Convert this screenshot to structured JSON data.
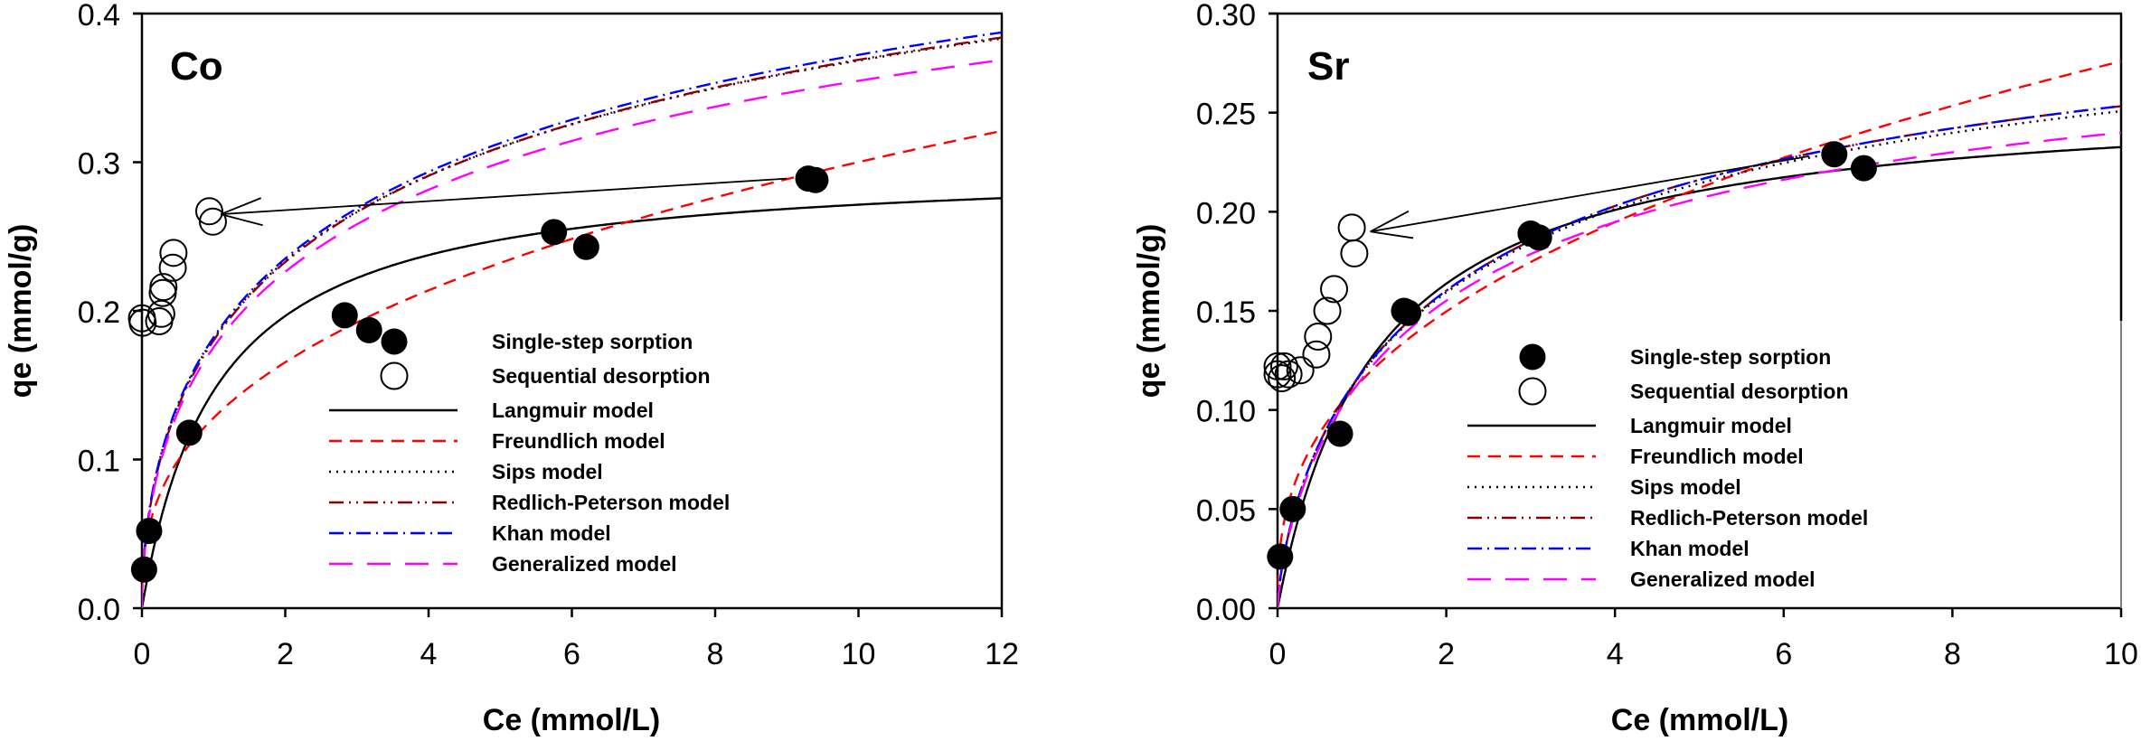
{
  "chart_data": [
    {
      "type": "scatter",
      "panel_label": "Co",
      "xlabel": "Ce (mmol/L)",
      "ylabel": "qe (mmol/g)",
      "xlim": [
        0,
        12
      ],
      "ylim": [
        0,
        0.4
      ],
      "xticks": [
        0,
        2,
        4,
        6,
        8,
        10,
        12
      ],
      "xtick_labels": [
        "0",
        "2",
        "4",
        "6",
        "8",
        "10",
        "12"
      ],
      "yticks": [
        0,
        0.1,
        0.2,
        0.3,
        0.4
      ],
      "ytick_labels": [
        "0.0",
        "0.1",
        "0.2",
        "0.3",
        "0.4"
      ],
      "grid": false,
      "legend_position": "center-right",
      "annotation": {
        "type": "arrow",
        "from": [
          9.0,
          0.289
        ],
        "to": [
          1.1,
          0.265
        ]
      },
      "series": [
        {
          "name": "Single-step sorption",
          "kind": "scatter",
          "marker": "filled-circle",
          "color": "#000000",
          "x": [
            0.03,
            0.1,
            0.66,
            2.83,
            3.17,
            5.75,
            6.2,
            9.3,
            9.4
          ],
          "y": [
            0.026,
            0.052,
            0.118,
            0.197,
            0.187,
            0.253,
            0.243,
            0.289,
            0.288
          ]
        },
        {
          "name": "Sequential desorption",
          "kind": "scatter",
          "marker": "open-circle",
          "color": "#000000",
          "x": [
            0.94,
            0.99,
            0.44,
            0.43,
            0.3,
            0.29,
            0.27,
            0.24,
            0.0,
            0.01
          ],
          "y": [
            0.267,
            0.26,
            0.239,
            0.229,
            0.216,
            0.212,
            0.198,
            0.193,
            0.195,
            0.192
          ]
        },
        {
          "name": "Langmuir model",
          "kind": "line",
          "dash": "solid",
          "color": "#000000",
          "model": "langmuir",
          "params": {
            "qm": 0.3,
            "K": 0.95
          }
        },
        {
          "name": "Freundlich model",
          "kind": "line",
          "dash": "dash",
          "color": "#ff0000",
          "model": "freundlich",
          "params": {
            "Kf": 0.128,
            "n": 0.37
          }
        },
        {
          "name": "Sips model",
          "kind": "line",
          "dash": "dot",
          "color": "#000000",
          "model": "sips",
          "params": {
            "qm": 0.62,
            "K": 0.2,
            "n": 0.55
          }
        },
        {
          "name": "Redlich-Peterson model",
          "kind": "line",
          "dash": "dash-dot-dot",
          "color": "#8b0000",
          "model": "sips",
          "params": {
            "qm": 0.62,
            "K": 0.2,
            "n": 0.555
          }
        },
        {
          "name": "Khan model",
          "kind": "line",
          "dash": "dash-dot",
          "color": "#0000ff",
          "model": "sips",
          "params": {
            "qm": 0.63,
            "K": 0.195,
            "n": 0.55
          }
        },
        {
          "name": "Generalized model",
          "kind": "line",
          "dash": "long-dash",
          "color": "#ff00ff",
          "model": "sips",
          "params": {
            "qm": 0.58,
            "K": 0.225,
            "n": 0.56
          }
        }
      ]
    },
    {
      "type": "scatter",
      "panel_label": "Sr",
      "xlabel": "Ce (mmol/L)",
      "ylabel": "qe (mmol/g)",
      "xlim": [
        0,
        10
      ],
      "ylim": [
        0,
        0.3
      ],
      "xticks": [
        0,
        2,
        4,
        6,
        8,
        10
      ],
      "xtick_labels": [
        "0",
        "2",
        "4",
        "6",
        "8",
        "10"
      ],
      "yticks": [
        0,
        0.05,
        0.1,
        0.15,
        0.2,
        0.25,
        0.3
      ],
      "ytick_labels": [
        "0.00",
        "0.05",
        "0.10",
        "0.15",
        "0.20",
        "0.25",
        "0.30"
      ],
      "grid": false,
      "legend_position": "center-right",
      "annotation": {
        "type": "arrow",
        "from": [
          6.3,
          0.228
        ],
        "to": [
          1.1,
          0.19
        ]
      },
      "series": [
        {
          "name": "Single-step sorption",
          "kind": "scatter",
          "marker": "filled-circle",
          "color": "#000000",
          "x": [
            0.03,
            0.18,
            0.74,
            1.5,
            1.55,
            3.0,
            3.1,
            6.6,
            6.95
          ],
          "y": [
            0.026,
            0.05,
            0.088,
            0.15,
            0.149,
            0.189,
            0.187,
            0.229,
            0.222
          ]
        },
        {
          "name": "Sequential desorption",
          "kind": "scatter",
          "marker": "open-circle",
          "color": "#000000",
          "x": [
            0.88,
            0.91,
            0.67,
            0.59,
            0.48,
            0.46,
            0.27,
            0.08,
            0.0,
            0.05,
            0.13,
            0.0
          ],
          "y": [
            0.192,
            0.179,
            0.161,
            0.15,
            0.137,
            0.128,
            0.12,
            0.122,
            0.118,
            0.116,
            0.118,
            0.122
          ]
        },
        {
          "name": "Langmuir model",
          "kind": "line",
          "dash": "solid",
          "color": "#000000",
          "model": "langmuir",
          "params": {
            "qm": 0.26,
            "K": 0.85
          }
        },
        {
          "name": "Freundlich model",
          "kind": "line",
          "dash": "dash",
          "color": "#ff0000",
          "model": "freundlich",
          "params": {
            "Kf": 0.115,
            "n": 0.38
          }
        },
        {
          "name": "Sips model",
          "kind": "line",
          "dash": "dot",
          "color": "#000000",
          "model": "sips",
          "params": {
            "qm": 0.34,
            "K": 0.42,
            "n": 0.72
          }
        },
        {
          "name": "Redlich-Peterson model",
          "kind": "line",
          "dash": "dash-dot-dot",
          "color": "#8b0000",
          "model": "sips",
          "params": {
            "qm": 0.345,
            "K": 0.41,
            "n": 0.72
          }
        },
        {
          "name": "Khan model",
          "kind": "line",
          "dash": "dash-dot",
          "color": "#0000ff",
          "model": "sips",
          "params": {
            "qm": 0.345,
            "K": 0.41,
            "n": 0.72
          }
        },
        {
          "name": "Generalized model",
          "kind": "line",
          "dash": "long-dash",
          "color": "#ff00ff",
          "model": "sips",
          "params": {
            "qm": 0.315,
            "K": 0.48,
            "n": 0.74
          }
        }
      ]
    }
  ]
}
